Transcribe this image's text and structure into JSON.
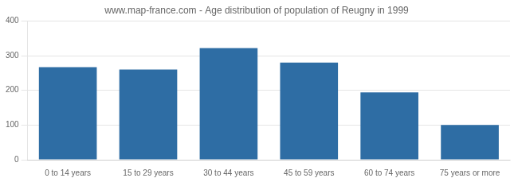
{
  "chart_data": {
    "type": "bar",
    "title": "www.map-france.com - Age distribution of population of Reugny in 1999",
    "categories": [
      "0 to 14 years",
      "15 to 29 years",
      "30 to 44 years",
      "45 to 59 years",
      "60 to 74 years",
      "75 years or more"
    ],
    "values": [
      267,
      260,
      322,
      280,
      194,
      100
    ],
    "color": "#2e6da4",
    "ylim": [
      0,
      400
    ],
    "yticks": [
      0,
      100,
      200,
      300,
      400
    ],
    "grid": true
  }
}
